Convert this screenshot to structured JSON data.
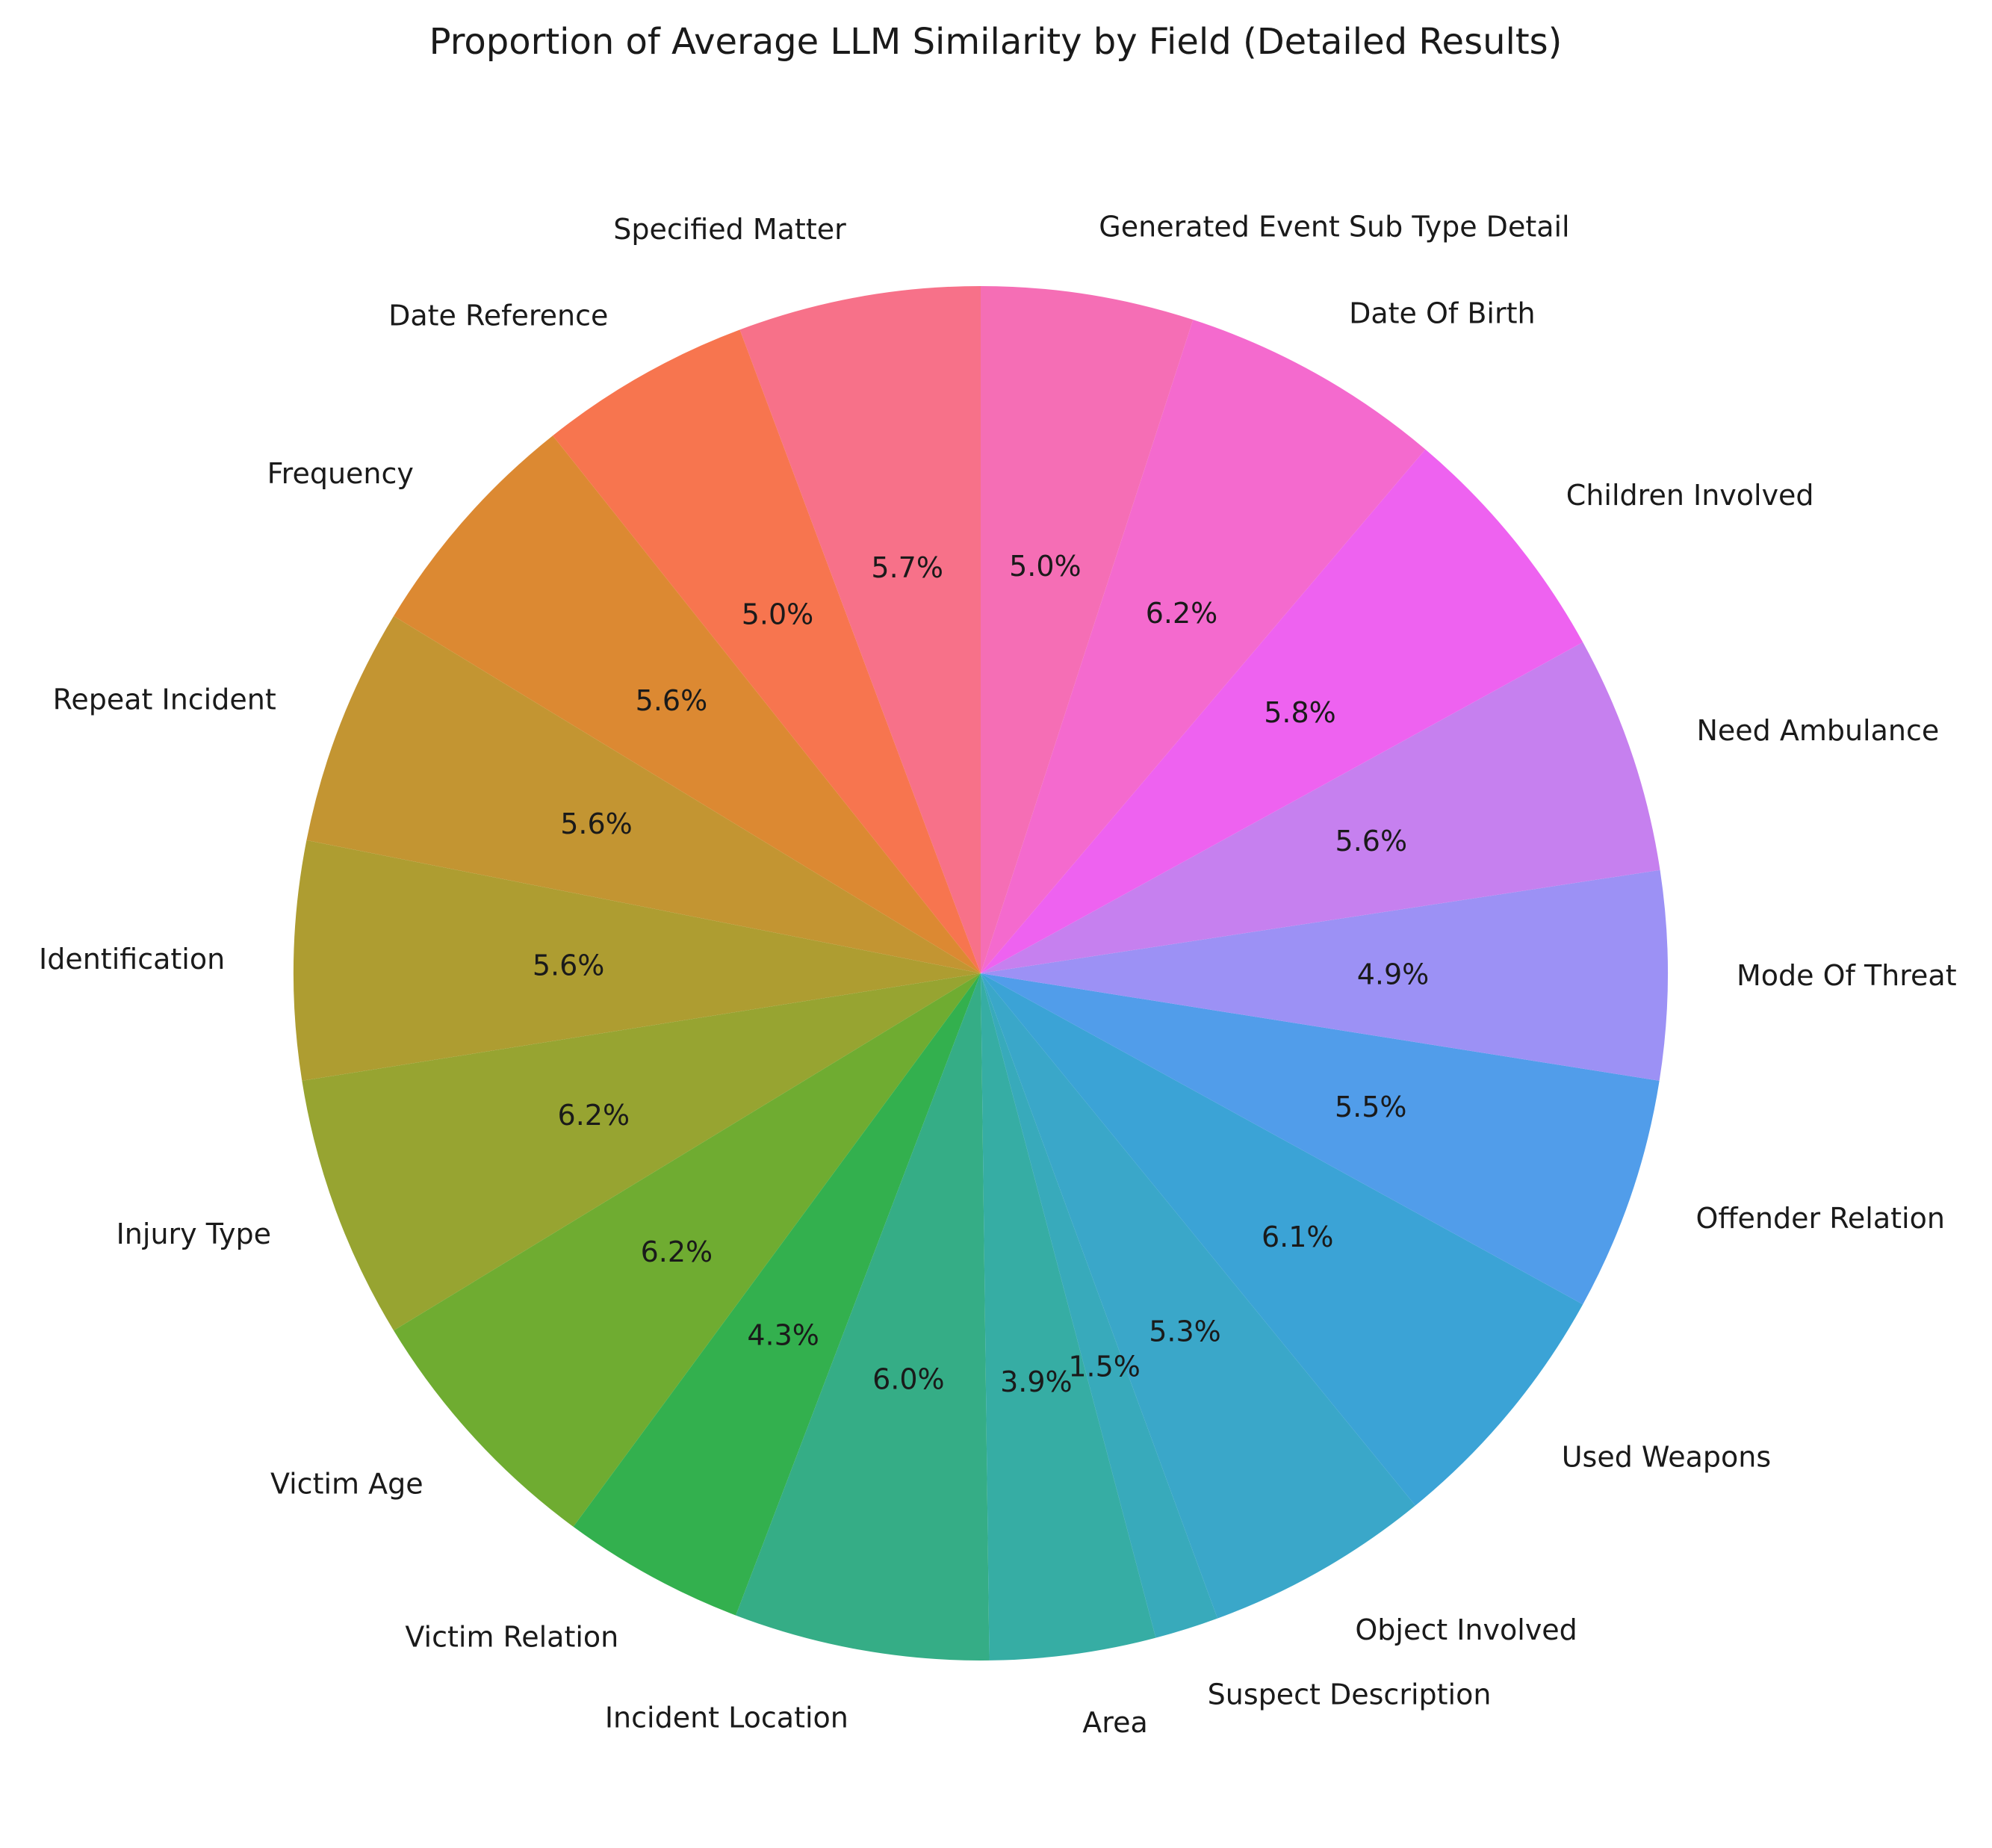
{
  "chart_data": {
    "type": "pie",
    "title": "Proportion of Average LLM Similarity by Field (Detailed Results)",
    "categories": [
      "Specified Matter",
      "Date Reference",
      "Frequency",
      "Repeat Incident",
      "Identification",
      "Injury Type",
      "Victim Age",
      "Victim Relation",
      "Incident Location",
      "Area",
      "Suspect Description",
      "Object Involved",
      "Used Weapons",
      "Offender Relation",
      "Mode Of Threat",
      "Need Ambulance",
      "Children Involved",
      "Date Of Birth",
      "Generated Event Sub Type Detail"
    ],
    "values": [
      5.7,
      5.0,
      5.6,
      5.6,
      5.6,
      6.2,
      6.2,
      4.3,
      6.0,
      3.9,
      1.5,
      5.3,
      6.1,
      5.5,
      4.9,
      5.6,
      5.8,
      6.2,
      5.0
    ],
    "percent_labels": [
      "5.7%",
      "5.0%",
      "5.6%",
      "5.6%",
      "5.6%",
      "6.2%",
      "6.2%",
      "4.3%",
      "6.0%",
      "3.9%",
      "1.5%",
      "5.3%",
      "6.1%",
      "5.5%",
      "4.9%",
      "5.6%",
      "5.8%",
      "6.2%",
      "5.0%"
    ],
    "colors": [
      "#f77189",
      "#f7754f",
      "#dc8932",
      "#c39532",
      "#ae9d31",
      "#97a431",
      "#6fac31",
      "#33b04e",
      "#35ad86",
      "#36ada4",
      "#38aabb",
      "#3aa7c9",
      "#3ba3d6",
      "#519dea",
      "#9c91f5",
      "#c680ef",
      "#ee62f0",
      "#f46ace",
      "#f56eb5"
    ],
    "start_angle_deg": 90,
    "direction": "counterclockwise",
    "legend": "none"
  }
}
